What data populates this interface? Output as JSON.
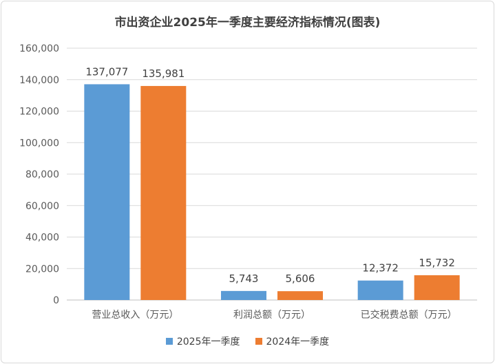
{
  "chart_data": {
    "type": "bar",
    "title": "市出资企业2025年一季度主要经济指标情况(图表)",
    "categories": [
      "营业总收入（万元）",
      "利润总额（万元）",
      "已交税费总额（万元）"
    ],
    "series": [
      {
        "name": "2025年一季度",
        "color": "#5b9bd5",
        "values": [
          137077,
          5743,
          12372
        ],
        "labels": [
          "137,077",
          "5,743",
          "12,372"
        ]
      },
      {
        "name": "2024年一季度",
        "color": "#ed7d31",
        "values": [
          135981,
          5606,
          15732
        ],
        "labels": [
          "135,981",
          "5,606",
          "15,732"
        ]
      }
    ],
    "yticks": [
      "0",
      "20,000",
      "40,000",
      "60,000",
      "80,000",
      "100,000",
      "120,000",
      "140,000",
      "160,000"
    ],
    "ylim": [
      0,
      160000
    ],
    "grid": true,
    "legend_position": "bottom"
  }
}
